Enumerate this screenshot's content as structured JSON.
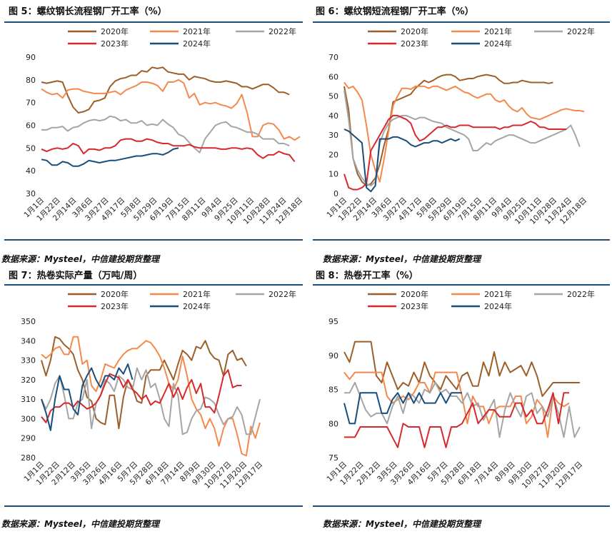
{
  "source_note": "数据来源：Mysteel，中信建投期货整理",
  "colors": {
    "2020": "#9B5F2A",
    "2021": "#F4894B",
    "2022": "#A5A5A5",
    "2023": "#D7282B",
    "2024": "#174F7C",
    "rule": "#1f4e79"
  },
  "chart_data": [
    {
      "type": "line",
      "title": "图 5：螺纹钢长流程钢厂开工率（%）",
      "ylim": [
        30,
        90
      ],
      "yticks": [
        30,
        40,
        50,
        60,
        70,
        80,
        90
      ],
      "xticklabels": [
        "1月1日",
        "1月22日",
        "2月14日",
        "3月6日",
        "3月27日",
        "4月17日",
        "5月8日",
        "5月29日",
        "6月19日",
        "7月15日",
        "8月11日",
        "9月4日",
        "9月25日",
        "10月11日",
        "10月28日",
        "11月24日",
        "12月18日"
      ],
      "series": [
        {
          "name": "2020年",
          "values": [
            79,
            78.5,
            79,
            79.5,
            79,
            73,
            68,
            65.5,
            66,
            67,
            70.5,
            71,
            72,
            77,
            79.5,
            80.5,
            81,
            82,
            82,
            84,
            83.5,
            85.5,
            85,
            85.5,
            83.5,
            83,
            82.5,
            82.5,
            80,
            81.5,
            81,
            80.5,
            79.5,
            79,
            79,
            79.5,
            79,
            78.5,
            77,
            77,
            76,
            77,
            78,
            78,
            76.5,
            74.5,
            74.5,
            73.5
          ]
        },
        {
          "name": "2021年",
          "values": [
            76,
            74.5,
            73.5,
            74,
            72,
            75.5,
            76,
            76,
            75,
            74.5,
            74,
            74,
            74,
            74.5,
            75,
            73.5,
            75.5,
            76.5,
            77.5,
            79,
            79,
            78.5,
            77.5,
            75,
            79,
            79,
            80,
            78.5,
            72,
            74,
            69,
            70,
            69.5,
            70,
            69,
            68.5,
            67.5,
            69.5,
            73.5,
            65.5,
            55,
            55,
            60,
            61,
            60.5,
            58,
            54,
            55,
            53.5,
            55
          ]
        },
        {
          "name": "2022年",
          "values": [
            58,
            58,
            59,
            59,
            59.5,
            57.5,
            59,
            59.5,
            61,
            62,
            62.5,
            62,
            62.5,
            64,
            63.5,
            62,
            62.5,
            61,
            61,
            62,
            60,
            60.5,
            60,
            62.5,
            60.5,
            59,
            56,
            55,
            52.5,
            50,
            48,
            54,
            57,
            60,
            61,
            61.5,
            59.5,
            59,
            58,
            57,
            57,
            56,
            54,
            54,
            54,
            52,
            52,
            51
          ]
        },
        {
          "name": "2023年",
          "values": [
            49.5,
            48.5,
            49.5,
            50,
            49.5,
            50,
            52,
            51,
            47.5,
            49.5,
            49.5,
            49,
            50,
            50,
            51,
            53.5,
            54,
            54,
            53,
            53,
            54,
            53.5,
            52.5,
            52,
            52,
            51,
            51,
            51,
            51.5,
            50.5,
            50,
            50,
            50,
            50,
            49.5,
            49.5,
            50,
            50,
            49.5,
            50,
            49.5,
            47,
            45.5,
            47,
            47,
            48.5,
            47.5,
            47,
            44
          ]
        },
        {
          "name": "2024年",
          "values": [
            45,
            44.5,
            42.5,
            42.5,
            44,
            43.5,
            42,
            42,
            43,
            44.5,
            44,
            43.5,
            44,
            44.5,
            44.5,
            45,
            45.5,
            46,
            46.5,
            46.5,
            47,
            47.5,
            47.5,
            47,
            48,
            49.5,
            50
          ]
        }
      ]
    },
    {
      "type": "line",
      "title": "图 6：螺纹钢短流程钢厂开工率（%）",
      "ylim": [
        0,
        70
      ],
      "yticks": [
        0,
        10,
        20,
        30,
        40,
        50,
        60,
        70
      ],
      "xticklabels": [
        "1月1日",
        "1月22日",
        "2月14日",
        "3月6日",
        "3月27日",
        "4月17日",
        "5月8日",
        "5月29日",
        "6月19日",
        "7月15日",
        "8月11日",
        "9月4日",
        "9月25日",
        "10月11日",
        "10月28日",
        "11月24日",
        "12月18日"
      ],
      "series": [
        {
          "name": "2020年",
          "values": [
            55,
            43,
            18,
            10,
            6,
            4,
            5,
            8,
            15,
            25,
            33,
            47,
            48,
            49,
            50,
            51,
            54,
            56,
            58,
            57,
            58,
            59.5,
            60.5,
            61,
            61,
            60,
            58,
            58.5,
            59,
            59,
            60,
            60.5,
            61,
            60.5,
            60,
            58,
            56.5,
            56.5,
            57,
            57,
            58,
            57.5,
            57,
            57,
            57,
            57,
            56.5,
            57
          ]
        },
        {
          "name": "2021年",
          "values": [
            57,
            54,
            55,
            52,
            48,
            35,
            20,
            12,
            6,
            18,
            32,
            45,
            50,
            54,
            54,
            53.5,
            55,
            55,
            55,
            54,
            55,
            55,
            54,
            53,
            54,
            55,
            53.5,
            52,
            51.5,
            50,
            49,
            50,
            51,
            51,
            48,
            47,
            48,
            45,
            43,
            42,
            44,
            41,
            39,
            38.5,
            38,
            39,
            40,
            41,
            42,
            43,
            43.5,
            43,
            42.5,
            42.5,
            42
          ]
        },
        {
          "name": "2022年",
          "values": [
            53,
            38,
            18,
            12,
            8,
            5,
            4,
            6,
            26,
            32,
            36,
            38,
            39,
            40,
            40,
            39,
            38,
            39,
            39,
            38,
            37,
            36.5,
            36,
            34,
            33,
            32,
            31,
            30,
            28,
            22,
            22,
            24,
            26,
            25,
            27,
            28,
            29,
            30,
            30,
            29,
            28,
            27,
            26,
            26,
            27,
            28,
            29,
            30,
            31,
            32,
            33,
            35,
            30,
            24
          ]
        },
        {
          "name": "2023年",
          "values": [
            10,
            3,
            2,
            2,
            3,
            5,
            22,
            26,
            30,
            34,
            38,
            40,
            40,
            39,
            38,
            36,
            30,
            27,
            28,
            30,
            32,
            34,
            34,
            35,
            34,
            34,
            35,
            35,
            35,
            34,
            34,
            34,
            34,
            34,
            34,
            33,
            34,
            34,
            35,
            35,
            35,
            36,
            37,
            36,
            34,
            34,
            33,
            33,
            33,
            33,
            33
          ]
        },
        {
          "name": "2024年",
          "values": [
            33,
            32,
            30,
            28,
            26,
            3,
            1,
            4,
            28,
            28,
            28,
            29,
            29,
            28,
            27,
            25,
            24,
            25,
            26,
            26,
            27,
            27,
            26,
            27,
            28,
            27,
            28
          ]
        }
      ]
    },
    {
      "type": "line",
      "title": "图 7：热卷实际产量（万吨/周）",
      "ylim": [
        280,
        350
      ],
      "yticks": [
        280,
        290,
        300,
        310,
        320,
        330,
        340,
        350
      ],
      "xticklabels": [
        "1月1日",
        "1月22日",
        "2月12日",
        "3月5日",
        "3月26日",
        "4月16日",
        "5月7日",
        "5月28日",
        "6月18日",
        "7月14日",
        "8月9日",
        "9月30日",
        "10月27日",
        "11月20日",
        "12月17日"
      ],
      "series": [
        {
          "name": "2020年",
          "values": [
            330,
            322,
            330,
            342,
            341,
            338,
            336,
            333,
            325,
            320,
            311,
            309,
            300,
            298,
            297,
            312,
            312,
            295,
            311,
            320,
            316,
            309,
            308,
            322,
            325,
            325,
            325,
            330,
            325,
            320,
            328,
            335,
            333,
            330,
            337,
            336,
            340,
            334,
            331,
            330,
            322,
            333,
            335,
            330,
            331,
            327
          ]
        },
        {
          "name": "2021年",
          "values": [
            333,
            331,
            333,
            336,
            337,
            333,
            333,
            342,
            342,
            328,
            330,
            317,
            314,
            320,
            328,
            327,
            326,
            330,
            333,
            335,
            336,
            336,
            338,
            340,
            339,
            336,
            332,
            326,
            318,
            315,
            320,
            332,
            322,
            310,
            305,
            302,
            295,
            300,
            295,
            286,
            295,
            300,
            300,
            292,
            282,
            281,
            296,
            290,
            298
          ]
        },
        {
          "name": "2022年",
          "values": [
            310,
            305,
            310,
            318,
            322,
            312,
            300,
            300,
            308,
            310,
            320,
            295,
            308,
            312,
            320,
            318,
            314,
            322,
            320,
            316,
            315,
            326,
            320,
            325,
            316,
            318,
            310,
            300,
            296,
            318,
            312,
            292,
            293,
            300,
            304,
            305,
            311,
            310,
            308,
            302,
            297,
            300,
            301,
            306,
            302,
            292,
            292,
            301,
            310
          ]
        },
        {
          "name": "2023年",
          "values": [
            301,
            298,
            304,
            306,
            306,
            308,
            308,
            306,
            309,
            307,
            305,
            306,
            308,
            312,
            318,
            323,
            322,
            321,
            316,
            320,
            315,
            313,
            310,
            312,
            307,
            309,
            308,
            313,
            318,
            311,
            316,
            310,
            316,
            320,
            313,
            318,
            306,
            306,
            303,
            312,
            322,
            325,
            316,
            317,
            317
          ]
        },
        {
          "name": "2024年",
          "values": [
            310,
            303,
            294,
            310,
            322,
            315,
            315,
            305,
            302,
            317,
            322,
            326,
            320,
            316,
            322,
            322,
            320,
            326,
            323,
            328,
            320
          ]
        }
      ]
    },
    {
      "type": "line",
      "title": "图 8：热卷开工率（%）",
      "ylim": [
        75,
        95
      ],
      "yticks": [
        75,
        80,
        85,
        90,
        95
      ],
      "xticklabels": [
        "1月1日",
        "1月22日",
        "2月12日",
        "3月5日",
        "3月26日",
        "4月16日",
        "5月7日",
        "5月28日",
        "6月18日",
        "7月14日",
        "8月9日",
        "9月30日",
        "10月27日",
        "11月20日",
        "12月17日"
      ],
      "series": [
        {
          "name": "2020年",
          "values": [
            90.5,
            89,
            92,
            92,
            92,
            92,
            87,
            86,
            89,
            87,
            85,
            86,
            85.5,
            87.5,
            86,
            89,
            87,
            86,
            85,
            87,
            86,
            85,
            87,
            87.5,
            85.5,
            85.5,
            89,
            87,
            90.5,
            87,
            89,
            87.5,
            88,
            88.5,
            87,
            89,
            87,
            84,
            85,
            86,
            86,
            86,
            86,
            86,
            86
          ]
        },
        {
          "name": "2021年",
          "values": [
            87.5,
            86.5,
            87.5,
            87.5,
            87.5,
            87.5,
            87.5,
            87.5,
            84,
            83,
            83.5,
            84,
            83.5,
            84.5,
            86,
            86,
            84.5,
            87.5,
            87.5,
            87.5,
            87.5,
            87.5,
            84,
            80,
            84,
            82.5,
            82.5,
            80,
            82,
            82.5,
            82.5,
            82.5,
            84,
            84,
            80,
            81,
            83.5,
            82.5,
            78,
            84,
            83,
            82.5,
            83
          ]
        },
        {
          "name": "2022年",
          "values": [
            84.5,
            84.5,
            86,
            84,
            82,
            81,
            81.5,
            81.5,
            80,
            82.5,
            84,
            81.5,
            84.5,
            84,
            83,
            85,
            84.5,
            86,
            84.5,
            85,
            84,
            84,
            83,
            84.5,
            82.5,
            83,
            80.5,
            82,
            83.5,
            78,
            82,
            84.5,
            82.5,
            81,
            84,
            84.5,
            81.5,
            82.5,
            81,
            84,
            81.5,
            78,
            82.5,
            78,
            79.5
          ]
        },
        {
          "name": "2023年",
          "values": [
            78,
            78,
            78,
            79.5,
            79.5,
            79.5,
            79.5,
            79.5,
            79.5,
            78,
            76.5,
            80,
            79.5,
            79.5,
            79.5,
            76.5,
            79.5,
            79.5,
            79.5,
            76.5,
            79.5,
            79.5,
            80,
            81.5,
            83,
            80,
            81,
            82,
            82,
            81,
            81,
            81,
            83,
            83,
            81,
            82,
            80,
            80,
            82,
            84.5,
            80,
            84.5,
            84.5
          ]
        },
        {
          "name": "2024年",
          "values": [
            83,
            80,
            80,
            84.5,
            84.5,
            84.5,
            84.5,
            81.5,
            81.5,
            83.5,
            84.5,
            83,
            84.5,
            83,
            84.5,
            83,
            83,
            83,
            84.5,
            83,
            84.5,
            84.5,
            84.5
          ]
        }
      ]
    }
  ]
}
